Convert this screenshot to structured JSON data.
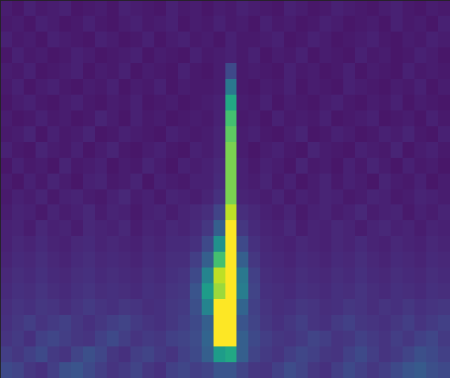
{
  "chart_data": {
    "type": "heatmap",
    "tick_labels": false,
    "color": "viridis",
    "xlim": [
      0,
      38
    ],
    "ylim": [
      0,
      24
    ],
    "zlim": [
      0,
      10
    ],
    "cells": [
      [
        2.2,
        2.0,
        1.6,
        1.4,
        1.8,
        2.4,
        2.6,
        2.2,
        1.8,
        1.5,
        1.7,
        2.0,
        1.6,
        1.4,
        1.9,
        2.1,
        1.8,
        2.0,
        2.6,
        2.6,
        2.0,
        1.6,
        1.5,
        1.9,
        2.3,
        2.0,
        1.6,
        1.4,
        1.8,
        2.2,
        1.9,
        1.6,
        1.8,
        2.2,
        2.6,
        2.8,
        2.4,
        2.2
      ],
      [
        1.8,
        1.6,
        1.9,
        2.2,
        1.7,
        1.5,
        2.0,
        2.4,
        2.1,
        1.6,
        1.4,
        1.8,
        2.0,
        1.7,
        1.5,
        1.9,
        2.2,
        3.0,
        5.5,
        6.0,
        3.0,
        2.0,
        1.7,
        1.5,
        1.8,
        2.1,
        1.9,
        1.6,
        1.5,
        1.9,
        2.2,
        1.8,
        1.5,
        1.7,
        2.0,
        2.4,
        2.2,
        1.9
      ],
      [
        1.5,
        1.7,
        1.4,
        1.9,
        2.1,
        1.8,
        1.6,
        1.5,
        1.9,
        2.2,
        1.8,
        1.5,
        1.7,
        1.6,
        1.9,
        2.0,
        2.3,
        3.2,
        10,
        10,
        3.0,
        2.2,
        1.8,
        1.6,
        1.5,
        1.7,
        2.0,
        1.8,
        1.5,
        1.6,
        1.9,
        1.7,
        1.5,
        1.8,
        1.6,
        1.9,
        2.1,
        1.7
      ],
      [
        1.4,
        1.6,
        1.8,
        1.5,
        1.7,
        1.9,
        1.6,
        1.4,
        1.6,
        1.8,
        2.0,
        1.7,
        1.5,
        1.4,
        1.6,
        1.8,
        2.2,
        3.0,
        10,
        10,
        2.6,
        2.0,
        1.6,
        1.4,
        1.6,
        1.8,
        1.5,
        1.4,
        1.7,
        1.9,
        1.6,
        1.5,
        1.4,
        1.6,
        1.8,
        1.5,
        1.7,
        1.9
      ],
      [
        1.3,
        1.5,
        1.4,
        1.6,
        1.5,
        1.3,
        1.5,
        1.7,
        1.5,
        1.4,
        1.6,
        1.5,
        1.3,
        1.4,
        1.6,
        1.7,
        2.4,
        4.5,
        10,
        10,
        3.2,
        1.9,
        1.5,
        1.3,
        1.4,
        1.6,
        1.5,
        1.3,
        1.4,
        1.6,
        1.5,
        1.3,
        1.5,
        1.4,
        1.6,
        1.4,
        1.5,
        1.6
      ],
      [
        1.2,
        1.4,
        1.3,
        1.5,
        1.3,
        1.2,
        1.4,
        1.5,
        1.3,
        1.4,
        1.3,
        1.2,
        1.4,
        1.3,
        1.5,
        1.6,
        2.6,
        5.5,
        8.5,
        10,
        4.2,
        2.0,
        1.4,
        1.3,
        1.2,
        1.4,
        1.3,
        1.2,
        1.4,
        1.3,
        1.5,
        1.3,
        1.2,
        1.4,
        1.3,
        1.2,
        1.4,
        1.3
      ],
      [
        1.1,
        1.3,
        1.2,
        1.4,
        1.2,
        1.1,
        1.3,
        1.4,
        1.2,
        1.3,
        1.2,
        1.1,
        1.3,
        1.2,
        1.4,
        1.5,
        2.2,
        4.5,
        9.0,
        10,
        4.0,
        1.9,
        1.3,
        1.2,
        1.1,
        1.3,
        1.2,
        1.1,
        1.3,
        1.2,
        1.4,
        1.2,
        1.1,
        1.3,
        1.2,
        1.1,
        1.3,
        1.2
      ],
      [
        1.0,
        1.2,
        1.1,
        1.3,
        1.1,
        1.0,
        1.2,
        1.3,
        1.1,
        1.2,
        1.1,
        1.0,
        1.2,
        1.1,
        1.3,
        1.3,
        1.8,
        3.0,
        7.0,
        10,
        3.0,
        1.6,
        1.2,
        1.1,
        1.0,
        1.2,
        1.1,
        1.0,
        1.2,
        1.1,
        1.3,
        1.1,
        1.0,
        1.2,
        1.1,
        1.0,
        1.2,
        1.1
      ],
      [
        0.9,
        1.1,
        1.0,
        1.2,
        1.0,
        0.9,
        1.1,
        1.2,
        1.0,
        1.1,
        1.0,
        0.9,
        1.1,
        1.0,
        1.2,
        1.2,
        1.4,
        2.2,
        5.0,
        10,
        2.2,
        1.4,
        1.1,
        1.0,
        0.9,
        1.1,
        1.0,
        0.9,
        1.1,
        1.0,
        1.2,
        1.0,
        0.9,
        1.1,
        1.0,
        0.9,
        1.1,
        1.0
      ],
      [
        0.9,
        1.0,
        0.8,
        1.1,
        0.9,
        1.0,
        0.8,
        1.1,
        1.0,
        0.9,
        1.1,
        0.8,
        1.0,
        0.9,
        1.1,
        1.0,
        1.2,
        1.6,
        3.0,
        10,
        1.6,
        1.2,
        1.0,
        0.9,
        1.1,
        0.8,
        1.0,
        0.9,
        1.1,
        1.0,
        0.8,
        1.0,
        1.1,
        0.9,
        1.0,
        0.8,
        1.0,
        0.9
      ],
      [
        0.8,
        1.0,
        0.9,
        0.7,
        1.0,
        0.8,
        0.9,
        1.1,
        0.8,
        1.0,
        0.9,
        0.7,
        0.9,
        1.0,
        0.8,
        1.0,
        1.1,
        1.3,
        2.0,
        9.0,
        1.3,
        1.1,
        0.9,
        0.8,
        1.0,
        0.7,
        0.9,
        1.0,
        0.8,
        0.9,
        1.1,
        0.8,
        0.9,
        1.0,
        0.7,
        0.9,
        0.8,
        1.0
      ],
      [
        0.7,
        0.9,
        0.8,
        1.0,
        0.7,
        0.9,
        1.0,
        0.8,
        0.7,
        0.9,
        1.1,
        0.8,
        0.9,
        0.7,
        1.0,
        0.9,
        0.8,
        1.0,
        1.4,
        8.0,
        1.0,
        0.9,
        0.8,
        1.0,
        0.7,
        0.9,
        0.8,
        1.0,
        0.9,
        0.7,
        0.8,
        1.0,
        0.9,
        0.7,
        0.8,
        1.0,
        0.9,
        0.8
      ],
      [
        0.8,
        0.6,
        0.9,
        0.7,
        1.0,
        0.8,
        0.6,
        0.9,
        1.0,
        0.7,
        0.8,
        1.0,
        0.6,
        0.9,
        0.8,
        0.7,
        0.9,
        0.9,
        1.2,
        8.0,
        0.9,
        0.8,
        1.0,
        0.7,
        0.9,
        0.6,
        0.8,
        1.0,
        0.7,
        0.9,
        0.8,
        0.6,
        1.0,
        0.8,
        0.7,
        0.9,
        0.6,
        0.8
      ],
      [
        0.6,
        0.9,
        0.7,
        0.8,
        0.6,
        1.0,
        0.7,
        0.8,
        0.9,
        0.6,
        0.8,
        0.7,
        1.0,
        0.8,
        0.6,
        0.9,
        0.8,
        0.9,
        1.1,
        8.0,
        0.9,
        0.7,
        0.9,
        0.8,
        0.6,
        1.0,
        0.7,
        0.8,
        0.6,
        0.9,
        0.7,
        1.0,
        0.8,
        0.6,
        0.9,
        0.7,
        0.8,
        0.6
      ],
      [
        0.9,
        0.7,
        0.6,
        1.0,
        0.8,
        0.7,
        0.9,
        0.6,
        0.8,
        1.0,
        0.7,
        0.6,
        0.8,
        0.9,
        0.7,
        0.6,
        0.9,
        0.8,
        1.0,
        8.0,
        0.8,
        0.6,
        0.8,
        0.9,
        0.7,
        0.6,
        1.0,
        0.8,
        0.7,
        0.6,
        0.9,
        0.8,
        0.7,
        1.0,
        0.6,
        0.8,
        0.9,
        0.7
      ],
      [
        0.7,
        0.8,
        1.0,
        0.6,
        0.9,
        0.7,
        0.8,
        1.0,
        0.6,
        0.7,
        0.9,
        0.8,
        0.7,
        0.6,
        0.9,
        0.8,
        0.7,
        0.8,
        1.0,
        7.5,
        0.8,
        0.9,
        0.7,
        0.6,
        0.8,
        1.0,
        0.6,
        0.7,
        0.9,
        0.8,
        0.6,
        0.7,
        0.9,
        0.8,
        1.0,
        0.7,
        0.6,
        0.9
      ],
      [
        0.8,
        0.6,
        0.7,
        0.9,
        0.7,
        0.8,
        0.6,
        0.7,
        1.0,
        0.8,
        0.6,
        0.9,
        0.7,
        0.8,
        0.6,
        0.7,
        0.8,
        0.7,
        0.9,
        7.0,
        0.7,
        0.8,
        0.6,
        0.9,
        0.7,
        0.8,
        0.7,
        0.9,
        0.6,
        0.7,
        0.8,
        0.9,
        0.6,
        0.7,
        0.8,
        0.6,
        0.9,
        0.7
      ],
      [
        0.6,
        0.8,
        0.9,
        0.7,
        0.6,
        0.8,
        0.9,
        0.7,
        0.6,
        0.8,
        0.7,
        0.9,
        0.6,
        0.7,
        0.8,
        0.6,
        0.7,
        0.8,
        0.9,
        6.0,
        0.8,
        0.7,
        0.9,
        0.6,
        0.8,
        0.7,
        0.6,
        0.8,
        0.9,
        0.7,
        0.6,
        0.8,
        0.7,
        0.9,
        0.6,
        0.8,
        0.7,
        0.6
      ],
      [
        0.7,
        0.9,
        0.6,
        0.8,
        0.9,
        0.7,
        0.6,
        0.8,
        0.7,
        0.9,
        0.6,
        0.8,
        0.7,
        0.9,
        0.6,
        0.8,
        0.7,
        0.7,
        0.8,
        4.0,
        0.7,
        0.6,
        0.8,
        0.7,
        0.9,
        0.6,
        0.8,
        0.7,
        0.6,
        0.9,
        0.8,
        0.7,
        0.6,
        0.8,
        0.7,
        0.9,
        0.6,
        0.8
      ],
      [
        0.8,
        0.7,
        0.9,
        0.6,
        0.7,
        0.8,
        0.9,
        0.6,
        0.8,
        0.7,
        0.9,
        0.6,
        0.8,
        0.7,
        0.6,
        0.9,
        0.7,
        0.6,
        0.8,
        2.2,
        0.7,
        0.8,
        0.7,
        0.6,
        0.9,
        0.7,
        0.8,
        0.6,
        0.7,
        0.9,
        0.6,
        0.8,
        0.7,
        0.6,
        0.9,
        0.7,
        0.8,
        0.7
      ],
      [
        0.6,
        0.9,
        0.7,
        0.8,
        0.6,
        0.7,
        0.9,
        0.8,
        0.6,
        0.7,
        0.8,
        0.9,
        0.6,
        0.8,
        0.7,
        0.6,
        0.9,
        0.7,
        0.8,
        0.9,
        0.7,
        0.9,
        0.6,
        0.8,
        0.7,
        0.9,
        0.6,
        0.8,
        0.7,
        0.6,
        0.9,
        0.7,
        0.8,
        0.6,
        0.7,
        0.9,
        0.8,
        0.6
      ],
      [
        0.9,
        0.7,
        0.8,
        0.6,
        0.9,
        0.8,
        0.7,
        0.6,
        0.9,
        0.8,
        0.6,
        0.7,
        0.9,
        0.6,
        0.8,
        0.9,
        0.7,
        0.8,
        0.6,
        0.9,
        0.7,
        0.7,
        0.8,
        0.9,
        0.6,
        0.7,
        0.9,
        0.8,
        0.6,
        0.7,
        0.8,
        0.9,
        0.7,
        0.6,
        0.8,
        0.7,
        0.9,
        0.8
      ],
      [
        0.7,
        0.8,
        0.6,
        0.9,
        0.8,
        0.6,
        0.7,
        0.9,
        0.7,
        0.6,
        0.8,
        0.9,
        0.7,
        0.8,
        0.9,
        0.6,
        0.8,
        0.7,
        0.9,
        0.7,
        0.8,
        0.6,
        0.9,
        0.7,
        0.8,
        0.6,
        0.7,
        0.9,
        0.8,
        0.6,
        0.7,
        0.8,
        0.6,
        0.9,
        0.7,
        0.8,
        0.6,
        0.9
      ],
      [
        0.8,
        0.6,
        0.9,
        0.7,
        0.8,
        0.9,
        0.6,
        0.7,
        0.8,
        0.6,
        0.9,
        0.8,
        0.7,
        0.6,
        0.9,
        0.7,
        0.8,
        0.6,
        0.8,
        0.7,
        0.9,
        0.8,
        0.7,
        0.6,
        0.9,
        0.8,
        0.6,
        0.7,
        0.9,
        0.8,
        0.7,
        0.6,
        0.8,
        0.9,
        0.7,
        0.6,
        0.8,
        0.7
      ]
    ]
  }
}
